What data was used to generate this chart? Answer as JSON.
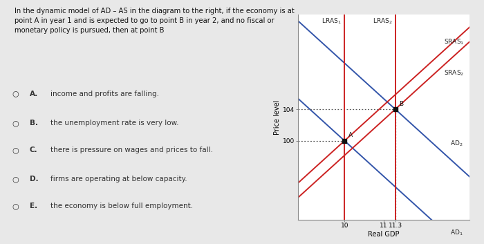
{
  "bg_color": "#e8e8e8",
  "chart_bg": "#ffffff",
  "text_bg": "#e8e8e8",
  "xlim": [
    8.8,
    13.2
  ],
  "ylim": [
    90,
    116
  ],
  "xlabel": "Real GDP",
  "ylabel": "Price level",
  "yticks": [
    100,
    104
  ],
  "xticks": [
    10,
    11,
    11.3
  ],
  "xtick_labels": [
    "10",
    "11",
    "11.3"
  ],
  "point_A": [
    10,
    100
  ],
  "point_B": [
    11.3,
    104
  ],
  "LRAS1_x": 10,
  "LRAS2_x": 11.3,
  "LRAS_color": "#cc2222",
  "AD1_color": "#3355aa",
  "AD2_color": "#3355aa",
  "SRAS1_color": "#cc2222",
  "SRAS2_color": "#cc2222",
  "dotted_color": "#555555",
  "label_LRAS1": "LRAS$_1$",
  "label_LRAS2": "LRAS$_2$",
  "label_SRAS1": "SRAS$_1$",
  "label_SRAS2": "SRAS$_2$",
  "label_AD1": "AD$_1$",
  "label_AD2": "AD$_2$",
  "ad_slope": -4.5,
  "sras_slope": 4.5,
  "question_text": "In the dynamic model of AD – AS in the diagram to the right, if the economy is at\npoint A in year 1 and is expected to go to point B in year 2, and no fiscal or\nmonetary policy is pursued, then at point B",
  "options": [
    [
      "A.",
      "income and profits are falling."
    ],
    [
      "B.",
      "the unemployment rate is very low."
    ],
    [
      "C.",
      "there is pressure on wages and prices to fall."
    ],
    [
      "D.",
      "firms are operating at below capacity."
    ],
    [
      "E.",
      "the economy is below full employment."
    ]
  ]
}
